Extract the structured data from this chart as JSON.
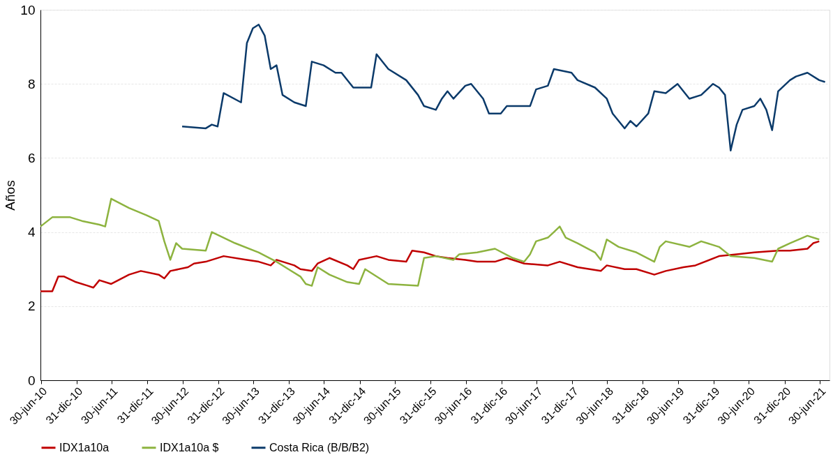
{
  "chart_data": {
    "type": "line",
    "ylabel": "Años",
    "ylim": [
      0,
      10
    ],
    "yticks": [
      0,
      2,
      4,
      6,
      8,
      10
    ],
    "grid": "y",
    "legend": "bottom",
    "xlim": [
      "2010-06-28",
      "2021-08-20"
    ],
    "xticks": [
      {
        "value": "2010-06-30",
        "label": "30-jun-10"
      },
      {
        "value": "2010-12-31",
        "label": "31-dic-10"
      },
      {
        "value": "2011-06-30",
        "label": "30-jun-11"
      },
      {
        "value": "2011-12-31",
        "label": "31-dic-11"
      },
      {
        "value": "2012-06-30",
        "label": "30-jun-12"
      },
      {
        "value": "2012-12-31",
        "label": "31-dic-12"
      },
      {
        "value": "2013-06-30",
        "label": "30-jun-13"
      },
      {
        "value": "2013-12-31",
        "label": "31-dic-13"
      },
      {
        "value": "2014-06-30",
        "label": "30-jun-14"
      },
      {
        "value": "2014-12-31",
        "label": "31-dic-14"
      },
      {
        "value": "2015-06-30",
        "label": "30-jun-15"
      },
      {
        "value": "2015-12-31",
        "label": "31-dic-15"
      },
      {
        "value": "2016-06-30",
        "label": "30-jun-16"
      },
      {
        "value": "2016-12-31",
        "label": "31-dic-16"
      },
      {
        "value": "2017-06-30",
        "label": "30-jun-17"
      },
      {
        "value": "2017-12-31",
        "label": "31-dic-17"
      },
      {
        "value": "2018-06-30",
        "label": "30-jun-18"
      },
      {
        "value": "2018-12-31",
        "label": "31-dic-18"
      },
      {
        "value": "2019-06-30",
        "label": "30-jun-19"
      },
      {
        "value": "2019-12-31",
        "label": "31-dic-19"
      },
      {
        "value": "2020-06-30",
        "label": "30-jun-20"
      },
      {
        "value": "2020-12-31",
        "label": "31-dic-20"
      },
      {
        "value": "2021-06-30",
        "label": "30-jun-21"
      }
    ],
    "series": [
      {
        "name": "IDX1a10a",
        "color": "#c00000",
        "x": [
          "2010-06-28",
          "2010-08-28",
          "2010-09-28",
          "2010-10-28",
          "2010-12-28",
          "2011-02-28",
          "2011-03-28",
          "2011-04-28",
          "2011-06-28",
          "2011-09-28",
          "2011-11-28",
          "2012-02-28",
          "2012-03-28",
          "2012-04-28",
          "2012-07-28",
          "2012-08-28",
          "2012-10-28",
          "2013-01-28",
          "2013-05-28",
          "2013-07-28",
          "2013-09-28",
          "2013-10-28",
          "2014-01-28",
          "2014-02-28",
          "2014-04-28",
          "2014-05-28",
          "2014-07-28",
          "2014-10-28",
          "2014-11-28",
          "2014-12-28",
          "2015-03-28",
          "2015-05-28",
          "2015-08-28",
          "2015-09-28",
          "2015-11-28",
          "2016-01-28",
          "2016-03-28",
          "2016-06-28",
          "2016-08-28",
          "2016-11-28",
          "2017-01-28",
          "2017-04-28",
          "2017-08-28",
          "2017-10-28",
          "2018-01-28",
          "2018-05-28",
          "2018-06-28",
          "2018-09-28",
          "2018-11-28",
          "2019-02-28",
          "2019-04-28",
          "2019-07-28",
          "2019-09-28",
          "2020-01-28",
          "2020-04-28",
          "2020-07-28",
          "2020-11-28",
          "2021-01-28",
          "2021-04-28",
          "2021-05-28",
          "2021-06-28"
        ],
        "values": [
          2.4,
          2.4,
          2.8,
          2.8,
          2.65,
          2.55,
          2.5,
          2.7,
          2.6,
          2.85,
          2.95,
          2.85,
          2.75,
          2.95,
          3.05,
          3.15,
          3.2,
          3.35,
          3.25,
          3.2,
          3.1,
          3.25,
          3.1,
          3.0,
          2.95,
          3.15,
          3.3,
          3.1,
          3.0,
          3.25,
          3.35,
          3.25,
          3.2,
          3.5,
          3.45,
          3.35,
          3.3,
          3.25,
          3.2,
          3.2,
          3.3,
          3.15,
          3.1,
          3.2,
          3.05,
          2.95,
          3.1,
          3.0,
          3.0,
          2.85,
          2.95,
          3.05,
          3.1,
          3.35,
          3.4,
          3.45,
          3.5,
          3.5,
          3.55,
          3.7,
          3.75
        ]
      },
      {
        "name": "IDX1a10a $",
        "color": "#8db33f",
        "x": [
          "2010-06-28",
          "2010-08-28",
          "2010-11-28",
          "2011-01-28",
          "2011-04-28",
          "2011-05-28",
          "2011-06-28",
          "2011-09-28",
          "2011-12-28",
          "2012-02-28",
          "2012-03-28",
          "2012-04-28",
          "2012-05-28",
          "2012-06-28",
          "2012-10-28",
          "2012-11-28",
          "2013-03-28",
          "2013-07-28",
          "2013-10-28",
          "2013-12-28",
          "2014-02-28",
          "2014-03-28",
          "2014-04-28",
          "2014-05-28",
          "2014-07-28",
          "2014-10-28",
          "2014-12-28",
          "2015-01-28",
          "2015-05-28",
          "2015-10-28",
          "2015-11-28",
          "2016-01-28",
          "2016-04-28",
          "2016-05-28",
          "2016-08-28",
          "2016-11-28",
          "2017-02-28",
          "2017-04-28",
          "2017-05-28",
          "2017-06-28",
          "2017-08-28",
          "2017-09-28",
          "2017-10-28",
          "2017-11-28",
          "2018-01-28",
          "2018-04-28",
          "2018-05-28",
          "2018-06-28",
          "2018-08-28",
          "2018-11-28",
          "2019-02-28",
          "2019-03-28",
          "2019-04-28",
          "2019-08-28",
          "2019-10-28",
          "2020-01-28",
          "2020-03-28",
          "2020-07-28",
          "2020-10-28",
          "2020-11-28",
          "2021-01-28",
          "2021-04-28",
          "2021-06-28"
        ],
        "values": [
          4.15,
          4.4,
          4.4,
          4.3,
          4.2,
          4.15,
          4.9,
          4.65,
          4.45,
          4.3,
          3.75,
          3.25,
          3.7,
          3.55,
          3.5,
          4.0,
          3.7,
          3.45,
          3.2,
          3.0,
          2.8,
          2.6,
          2.55,
          3.05,
          2.85,
          2.65,
          2.6,
          3.0,
          2.6,
          2.55,
          3.3,
          3.35,
          3.25,
          3.4,
          3.45,
          3.55,
          3.3,
          3.2,
          3.4,
          3.75,
          3.85,
          4.0,
          4.15,
          3.85,
          3.7,
          3.45,
          3.25,
          3.8,
          3.6,
          3.45,
          3.2,
          3.6,
          3.75,
          3.6,
          3.75,
          3.6,
          3.35,
          3.3,
          3.2,
          3.55,
          3.7,
          3.9,
          3.8
        ]
      },
      {
        "name": "Costa Rica (B/B/B2)",
        "color": "#0b3a6a",
        "x": [
          "2012-06-28",
          "2012-10-28",
          "2012-11-28",
          "2012-12-28",
          "2013-01-28",
          "2013-04-28",
          "2013-05-28",
          "2013-06-28",
          "2013-07-28",
          "2013-08-28",
          "2013-09-28",
          "2013-10-28",
          "2013-11-28",
          "2014-01-28",
          "2014-03-28",
          "2014-04-28",
          "2014-06-28",
          "2014-08-28",
          "2014-09-28",
          "2014-11-28",
          "2015-02-28",
          "2015-03-28",
          "2015-05-28",
          "2015-08-28",
          "2015-10-28",
          "2015-11-28",
          "2016-01-28",
          "2016-02-28",
          "2016-03-28",
          "2016-04-28",
          "2016-06-28",
          "2016-07-28",
          "2016-09-28",
          "2016-10-28",
          "2016-12-28",
          "2017-01-28",
          "2017-05-28",
          "2017-06-28",
          "2017-08-28",
          "2017-09-28",
          "2017-12-28",
          "2018-01-28",
          "2018-04-28",
          "2018-06-28",
          "2018-07-28",
          "2018-09-28",
          "2018-10-28",
          "2018-11-28",
          "2019-01-28",
          "2019-02-28",
          "2019-04-28",
          "2019-06-28",
          "2019-08-28",
          "2019-10-28",
          "2019-12-28",
          "2020-01-28",
          "2020-02-28",
          "2020-03-28",
          "2020-04-28",
          "2020-05-28",
          "2020-07-28",
          "2020-08-28",
          "2020-09-28",
          "2020-10-28",
          "2020-11-28",
          "2021-01-28",
          "2021-02-28",
          "2021-04-28",
          "2021-06-28",
          "2021-07-28"
        ],
        "values": [
          6.85,
          6.8,
          6.9,
          6.85,
          7.75,
          7.5,
          9.1,
          9.5,
          9.6,
          9.3,
          8.4,
          8.5,
          7.7,
          7.5,
          7.4,
          8.6,
          8.5,
          8.3,
          8.3,
          7.9,
          7.9,
          8.8,
          8.4,
          8.1,
          7.7,
          7.4,
          7.3,
          7.6,
          7.8,
          7.6,
          7.95,
          8.0,
          7.6,
          7.2,
          7.2,
          7.4,
          7.4,
          7.85,
          7.95,
          8.4,
          8.3,
          8.1,
          7.9,
          7.6,
          7.2,
          6.8,
          7.0,
          6.85,
          7.2,
          7.8,
          7.75,
          8.0,
          7.6,
          7.7,
          8.0,
          7.9,
          7.7,
          6.2,
          6.9,
          7.3,
          7.4,
          7.6,
          7.3,
          6.75,
          7.8,
          8.1,
          8.2,
          8.3,
          8.1,
          8.05
        ]
      }
    ]
  }
}
